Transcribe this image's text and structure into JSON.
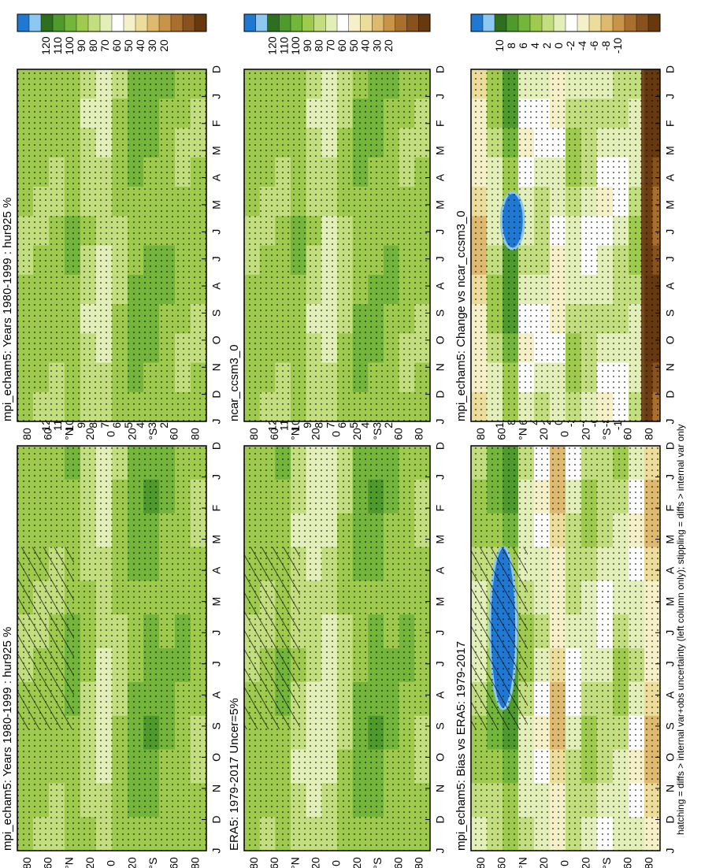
{
  "footer": "hatching = diffs > internal var+obs uncertainty (left column only); stippling = diffs > internal var only",
  "chart_data": [
    {
      "id": "p_mod_left",
      "type": "heatmap",
      "title": "mpi_echam5: Years 1980-1999 : hur925 %",
      "x": [
        "D",
        "J",
        "F",
        "M",
        "A",
        "M",
        "J",
        "J",
        "A",
        "S",
        "O",
        "N",
        "D",
        "J"
      ],
      "y": [
        "80",
        "60",
        "°N",
        "20",
        "0",
        "20",
        "°S",
        "60",
        "80"
      ],
      "colorbar": [
        "120",
        "110",
        "100",
        "90",
        "80",
        "70",
        "60",
        "50",
        "40",
        "30",
        "20"
      ],
      "scale": "abs",
      "band_values": [
        84,
        84,
        84,
        88,
        80,
        74,
        82,
        90,
        92,
        88,
        86,
        84
      ],
      "hatching": true,
      "stippling": true
    },
    {
      "id": "p_obs",
      "type": "heatmap",
      "title": "ERA5: 1979-2017 Uncer=5%",
      "x": [
        "D",
        "J",
        "F",
        "M",
        "A",
        "M",
        "J",
        "J",
        "A",
        "S",
        "O",
        "N",
        "D",
        "J"
      ],
      "y": [
        "80",
        "60",
        "°N",
        "20",
        "0",
        "20",
        "°S",
        "60",
        "80"
      ],
      "colorbar": [
        "120",
        "110",
        "100",
        "90",
        "80",
        "70",
        "60",
        "50",
        "40",
        "30",
        "20"
      ],
      "scale": "abs",
      "band_values": [
        84,
        84,
        86,
        78,
        74,
        72,
        80,
        90,
        92,
        88,
        86,
        84
      ],
      "hatching": true,
      "stippling": true
    },
    {
      "id": "p_bias",
      "type": "heatmap",
      "title": "mpi_echam5: Bias vs ERA5: 1979-2017",
      "x": [
        "D",
        "J",
        "F",
        "M",
        "A",
        "M",
        "J",
        "J",
        "A",
        "S",
        "O",
        "N",
        "D",
        "J"
      ],
      "y": [
        "80",
        "60",
        "°N",
        "20",
        "0",
        "20",
        "°S",
        "60",
        "80"
      ],
      "colorbar": [
        "10",
        "8",
        "6",
        "4",
        "2",
        "0",
        "-2",
        "-4",
        "-6",
        "-8",
        "-10"
      ],
      "scale": "diff",
      "band_values": [
        2,
        3,
        5,
        2,
        0,
        -3,
        1,
        2,
        1,
        2,
        0,
        -3
      ],
      "hatching": true,
      "stippling": true
    },
    {
      "id": "p_mod_right",
      "type": "heatmap",
      "title": "mpi_echam5: Years 1980-1999 : hur925 %",
      "x": [
        "D",
        "J",
        "F",
        "M",
        "A",
        "M",
        "J",
        "J",
        "A",
        "S",
        "O",
        "N",
        "D",
        "J"
      ],
      "y": [
        "80",
        "60",
        "°N",
        "20",
        "0",
        "20",
        "°S",
        "60",
        "80"
      ],
      "colorbar": [
        "120",
        "110",
        "100",
        "90",
        "80",
        "70",
        "60",
        "50",
        "40",
        "30",
        "20"
      ],
      "scale": "abs",
      "band_values": [
        84,
        84,
        84,
        86,
        78,
        74,
        82,
        90,
        90,
        86,
        84,
        84
      ],
      "hatching": false,
      "stippling": true
    },
    {
      "id": "p_ncar",
      "type": "heatmap",
      "title": "ncar_ccsm3_0",
      "x": [
        "D",
        "J",
        "F",
        "M",
        "A",
        "M",
        "J",
        "J",
        "A",
        "S",
        "O",
        "N",
        "D",
        "J"
      ],
      "y": [
        "80",
        "60",
        "°N",
        "20",
        "0",
        "20",
        "°S",
        "60",
        "80"
      ],
      "colorbar": [
        "120",
        "110",
        "100",
        "90",
        "80",
        "70",
        "60",
        "50",
        "40",
        "30",
        "20"
      ],
      "scale": "abs",
      "band_values": [
        84,
        84,
        84,
        86,
        78,
        72,
        80,
        88,
        88,
        86,
        84,
        84
      ],
      "hatching": false,
      "stippling": true
    },
    {
      "id": "p_change",
      "type": "heatmap",
      "title": "mpi_echam5: Change vs ncar_ccsm3_0",
      "x": [
        "D",
        "J",
        "F",
        "M",
        "A",
        "M",
        "J",
        "J",
        "A",
        "S",
        "O",
        "N",
        "D",
        "J"
      ],
      "y": [
        "80",
        "60",
        "°N",
        "20",
        "0",
        "20",
        "°S",
        "60",
        "80"
      ],
      "colorbar": [
        "10",
        "8",
        "6",
        "4",
        "2",
        "0",
        "-2",
        "-4",
        "-6",
        "-8",
        "-10"
      ],
      "scale": "diff",
      "band_values": [
        -3,
        2,
        5,
        0,
        1,
        -1,
        2,
        1,
        0,
        1,
        2,
        -9
      ],
      "hatching": false,
      "stippling": true
    }
  ],
  "colors": {
    "abs": [
      "#1f78d1",
      "#8cc8f0",
      "#2e6e1f",
      "#4e9a2c",
      "#74b53b",
      "#9ecb4e",
      "#c2de7e",
      "#e2efb8",
      "#ffffff",
      "#f5f0c8",
      "#ecdd9a",
      "#deb970",
      "#c89448",
      "#a8702c",
      "#87521b",
      "#66390f"
    ],
    "diff": [
      "#1f78d1",
      "#8cc8f0",
      "#2e6e1f",
      "#4e9a2c",
      "#74b53b",
      "#9ecb4e",
      "#c2de7e",
      "#e2efb8",
      "#ffffff",
      "#f5f0c8",
      "#ecdd9a",
      "#deb970",
      "#c89448",
      "#a8702c",
      "#87521b",
      "#66390f"
    ]
  }
}
